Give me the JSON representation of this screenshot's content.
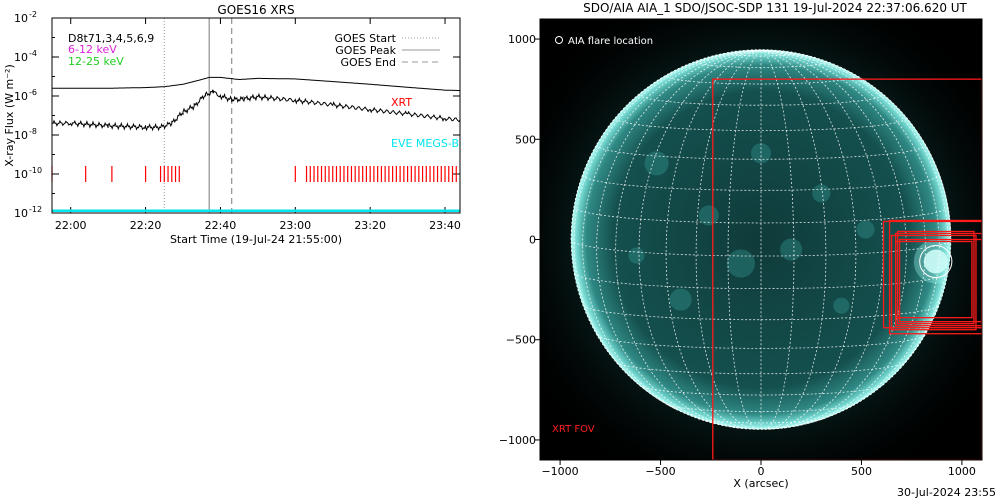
{
  "chart_data": [
    {
      "type": "line",
      "title": "GOES16 XRS",
      "xlabel": "Start Time (19-Jul-24 21:55:00)",
      "ylabel": "X-ray Flux (W m⁻²)",
      "yscale": "log",
      "xlim": [
        "21:55",
        "23:44"
      ],
      "ylim": [
        1e-12,
        0.01
      ],
      "x_ticks": [
        "22:00",
        "22:20",
        "22:40",
        "23:00",
        "23:20",
        "23:40"
      ],
      "y_ticks": [
        {
          "value": 1e-12,
          "base": "10",
          "exp": "-12"
        },
        {
          "value": 1e-10,
          "base": "10",
          "exp": "-10"
        },
        {
          "value": 1e-08,
          "base": "10",
          "exp": "-8"
        },
        {
          "value": 1e-06,
          "base": "10",
          "exp": "-6"
        },
        {
          "value": 0.0001,
          "base": "10",
          "exp": "-4"
        },
        {
          "value": 0.01,
          "base": "10",
          "exp": "-2"
        }
      ],
      "legend_placement": "top-right",
      "legend": [
        {
          "label": "GOES Start",
          "style": "dotted",
          "color": "#999999"
        },
        {
          "label": "GOES Peak",
          "style": "solid",
          "color": "#999999"
        },
        {
          "label": "GOES End",
          "style": "dashed",
          "color": "#999999"
        }
      ],
      "annotations": [
        {
          "text": "D8t71,3,4,5,6,9",
          "color": "#000000"
        },
        {
          "text": "6-12 keV",
          "color": "#dd22dd"
        },
        {
          "text": "12-25 keV",
          "color": "#22cc22"
        },
        {
          "text": "XRT",
          "color": "#ff0000"
        },
        {
          "text": "EVE MEGS-B",
          "color": "#00e5ee"
        }
      ],
      "events": {
        "goes_start": "22:25",
        "goes_peak": "22:37",
        "goes_end": "22:43"
      },
      "series": [
        {
          "color": "#000000",
          "x": [
            "21:55",
            "22:00",
            "22:10",
            "22:20",
            "22:25",
            "22:30",
            "22:35",
            "22:37",
            "22:40",
            "22:45",
            "22:50",
            "23:00",
            "23:10",
            "23:20",
            "23:30",
            "23:40",
            "23:44"
          ],
          "y": [
            2.5e-06,
            2.5e-06,
            2.5e-06,
            2.7e-06,
            3e-06,
            4e-06,
            7e-06,
            9e-06,
            9e-06,
            7e-06,
            8e-06,
            7.5e-06,
            5.5e-06,
            4e-06,
            2.8e-06,
            2e-06,
            1.9e-06
          ]
        },
        {
          "color": "#000000",
          "x": [
            "21:55",
            "22:00",
            "22:10",
            "22:20",
            "22:24",
            "22:27",
            "22:30",
            "22:33",
            "22:36",
            "22:38",
            "22:40",
            "22:43",
            "22:46",
            "22:50",
            "23:00",
            "23:10",
            "23:20",
            "23:30",
            "23:40",
            "23:44"
          ],
          "y": [
            4e-08,
            4e-08,
            3e-08,
            2.5e-08,
            2.5e-08,
            4e-08,
            1.5e-07,
            3e-07,
            1.2e-06,
            1.6e-06,
            1e-06,
            6.5e-07,
            7e-07,
            9e-07,
            6e-07,
            3.5e-07,
            2e-07,
            1.2e-07,
            7e-08,
            6e-08
          ]
        }
      ],
      "xrt_ticks": [
        "21:55",
        "22:04",
        "22:11",
        "22:20",
        "22:24",
        "22:25",
        "22:26",
        "22:27",
        "22:28",
        "22:29",
        "23:00",
        "23:03",
        "23:04",
        "23:05",
        "23:06",
        "23:07",
        "23:08",
        "23:09",
        "23:10",
        "23:11",
        "23:12",
        "23:13",
        "23:14",
        "23:15",
        "23:16",
        "23:17",
        "23:18",
        "23:19",
        "23:20",
        "23:21",
        "23:22",
        "23:23",
        "23:24",
        "23:25",
        "23:26",
        "23:27",
        "23:28",
        "23:29",
        "23:30",
        "23:31",
        "23:32",
        "23:33",
        "23:34",
        "23:35",
        "23:36",
        "23:37",
        "23:38",
        "23:39",
        "23:40",
        "23:41",
        "23:42",
        "23:43"
      ],
      "eve_level": 1.3e-12
    },
    {
      "type": "scatter",
      "title": "SDO/AIA AIA_1 SDO/JSOC-SDP 131 19-Jul-2024 22:37:06.620 UT",
      "xlabel": "X (arcsec)",
      "ylabel": "",
      "xlim": [
        -1100,
        1100
      ],
      "ylim": [
        -1100,
        1100
      ],
      "x_ticks": [
        -1000,
        -500,
        0,
        500,
        1000
      ],
      "y_ticks": [
        1000,
        500,
        0,
        -500,
        -1000
      ],
      "x_tick_labels": [
        "−1000",
        "−500",
        "0",
        "500",
        "1000"
      ],
      "y_tick_labels": [
        "1000",
        "500",
        "0",
        "−500",
        "−1000"
      ],
      "legend_placement": "top-left",
      "legend_text": "AIA flare location",
      "fov_label": "XRT FOV",
      "sun_radius": 945,
      "grid": true,
      "flare": {
        "x": 870,
        "y": -110,
        "r": 80
      },
      "fov_boxes": [
        {
          "x0": -240,
          "x1": 1100,
          "y0": -1100,
          "y1": 800
        },
        {
          "x0": 610,
          "x1": 1100,
          "y0": -440,
          "y1": 90
        },
        {
          "x0": 670,
          "x1": 1100,
          "y0": -430,
          "y1": 30
        },
        {
          "x0": 680,
          "x1": 1060,
          "y0": -420,
          "y1": 40
        },
        {
          "x0": 640,
          "x1": 1100,
          "y0": -470,
          "y1": 95
        },
        {
          "x0": 650,
          "x1": 1070,
          "y0": -450,
          "y1": 20
        },
        {
          "x0": 690,
          "x1": 1100,
          "y0": -410,
          "y1": 0
        },
        {
          "x0": 670,
          "x1": 1050,
          "y0": -390,
          "y1": -10
        }
      ]
    }
  ],
  "footer": "30-Jul-2024 23:55"
}
